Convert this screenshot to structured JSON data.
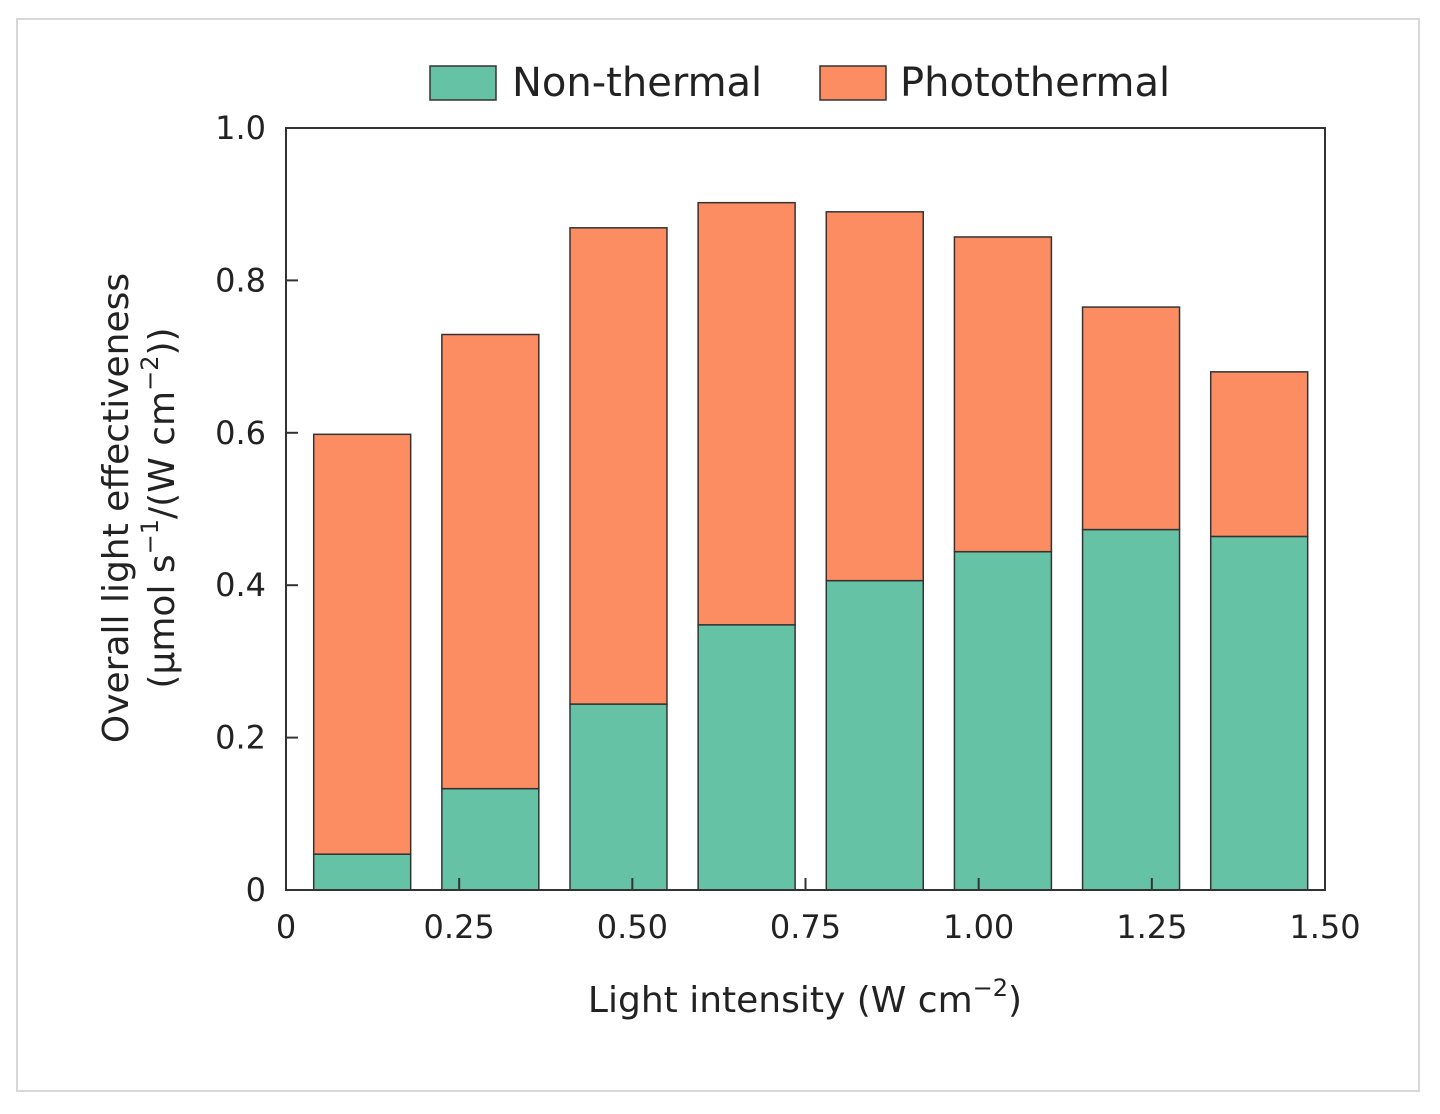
{
  "chart_data": {
    "type": "bar",
    "stacked": true,
    "x": [
      0.11,
      0.295,
      0.48,
      0.665,
      0.85,
      1.035,
      1.22,
      1.405
    ],
    "series": [
      {
        "name": "Non-thermal",
        "color": "#66c2a5",
        "values": [
          0.047,
          0.133,
          0.244,
          0.348,
          0.406,
          0.444,
          0.473,
          0.464
        ]
      },
      {
        "name": "Photothermal",
        "color": "#fc8d62",
        "values": [
          0.551,
          0.596,
          0.625,
          0.554,
          0.484,
          0.413,
          0.292,
          0.216
        ]
      }
    ],
    "xlabel_main": "Light intensity (W cm",
    "xlabel_sup": "−2",
    "xlabel_end": ")",
    "ylabel_line1": "Overall light effectiveness",
    "ylabel_line2_a": "(μmol s",
    "ylabel_line2_sup1": "−1",
    "ylabel_line2_b": "/(W cm",
    "ylabel_line2_sup2": "−2",
    "ylabel_line2_c": "))",
    "xlim": [
      0,
      1.5
    ],
    "ylim": [
      0,
      1.0
    ],
    "xticks": [
      0,
      0.25,
      0.5,
      0.75,
      1.0,
      1.25,
      1.5
    ],
    "xtick_labels": [
      "0",
      "0.25",
      "0.50",
      "0.75",
      "1.00",
      "1.25",
      "1.50"
    ],
    "yticks": [
      0,
      0.2,
      0.4,
      0.6,
      0.8,
      1.0
    ],
    "ytick_labels": [
      "0",
      "0.2",
      "0.4",
      "0.6",
      "0.8",
      "1.0"
    ],
    "bar_width": 0.14,
    "grid": false,
    "legend_position": "top"
  }
}
